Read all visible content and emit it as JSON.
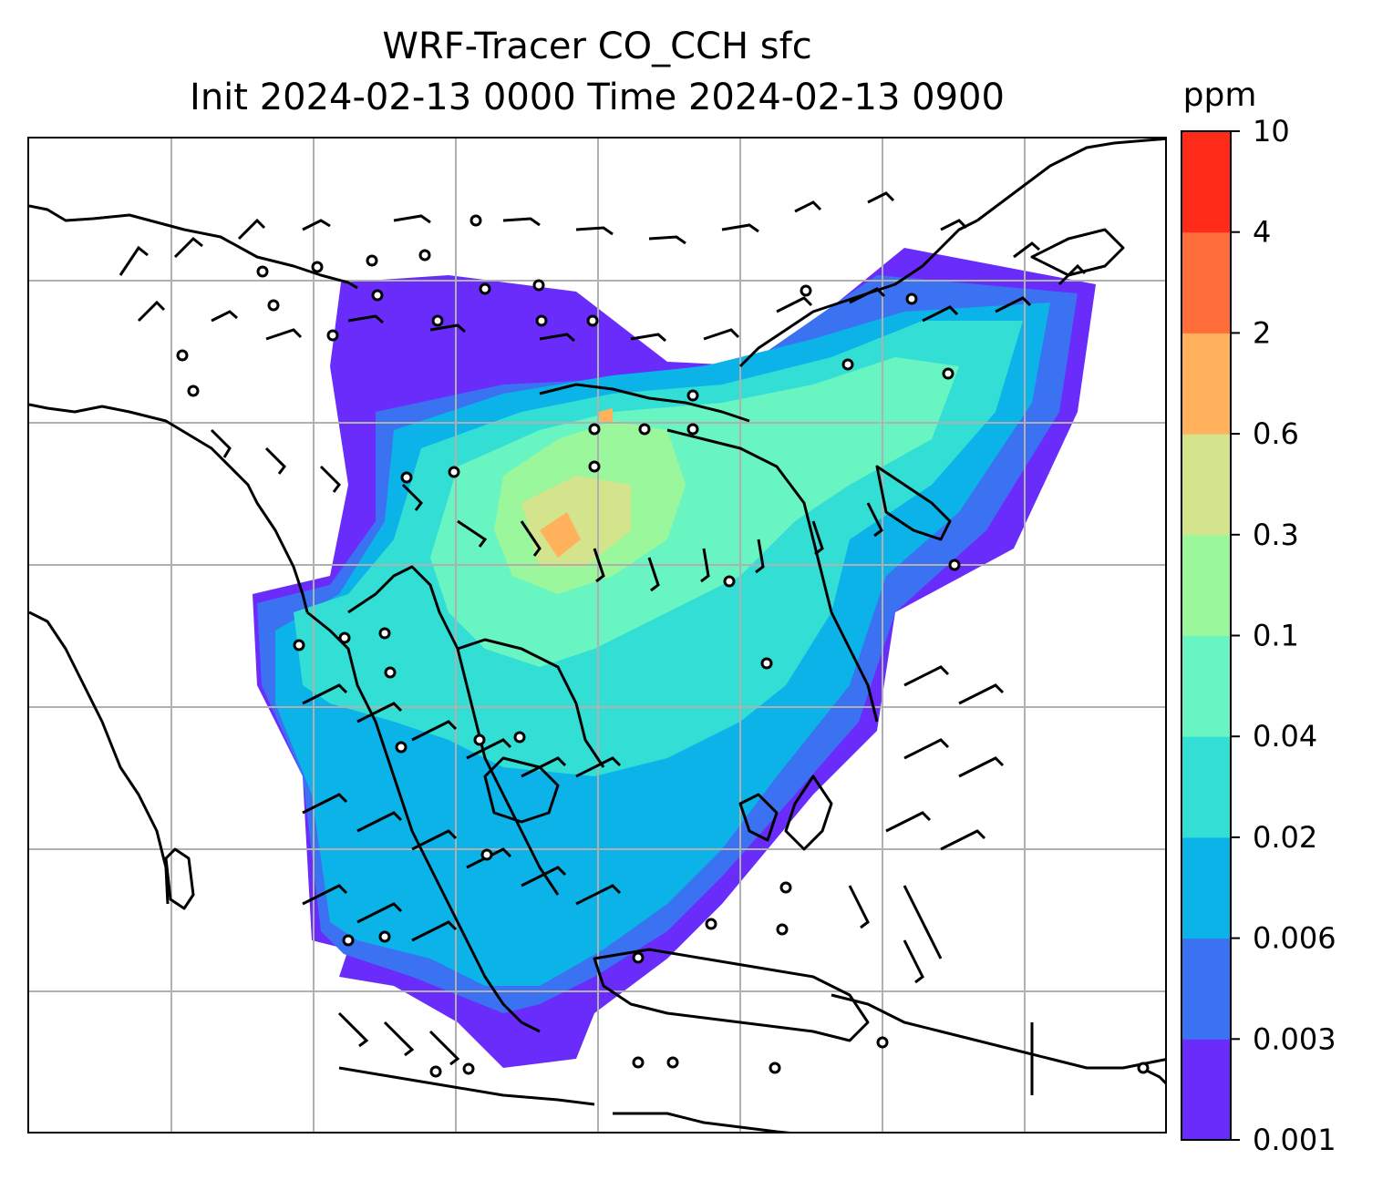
{
  "title": {
    "line1": "WRF-Tracer CO_CCH sfc",
    "line2": "Init 2024-02-13 0000 Time 2024-02-13 0900"
  },
  "colorbar": {
    "unit_label": "ppm",
    "levels": [
      "0.001",
      "0.003",
      "0.006",
      "0.02",
      "0.04",
      "0.1",
      "0.3",
      "0.6",
      "2",
      "4",
      "10"
    ],
    "colors": [
      "#6a2cfb",
      "#3a72f1",
      "#0bb3e8",
      "#33dfd5",
      "#69f5c2",
      "#9bf79c",
      "#d4e48c",
      "#ffb15b",
      "#ff6e3a",
      "#ff2a17"
    ]
  },
  "map": {
    "coastline_color": "#000000",
    "gridline_color": "#b0b0b0",
    "land_color": "#ffffff"
  }
}
